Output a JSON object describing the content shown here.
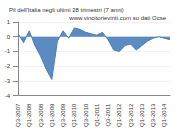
{
  "chart_data": {
    "type": "area",
    "title": "Pil dell'Italia negli ultimi 28 trimestri (7 anni)",
    "subtitle": "www.vincitorievinti.com su dati Ocse",
    "categories": [
      "Q3-2007",
      null,
      "Q1-2008",
      null,
      "Q3-2008",
      null,
      "Q1-2009",
      null,
      "Q3-2009",
      null,
      "Q1-2010",
      null,
      "Q3-2010",
      null,
      "Q1-2011",
      null,
      "Q3-2011",
      null,
      "Q1-2012",
      null,
      "Q3-2012",
      null,
      "Q1-2013",
      null,
      "Q3-2013",
      null,
      "Q1-2014",
      null
    ],
    "values": [
      0.2,
      -0.4,
      0.4,
      -0.6,
      -1.3,
      -2.2,
      -2.9,
      -0.3,
      0.4,
      -0.1,
      0.6,
      0.5,
      0.3,
      0.2,
      0.1,
      0.3,
      -0.2,
      -0.9,
      -1.0,
      -0.6,
      -0.5,
      -0.9,
      -0.6,
      -0.3,
      -0.1,
      0.0,
      -0.1,
      -0.2
    ],
    "color": "#4a7ebb",
    "ylim": [
      -4,
      1
    ],
    "yticks": [
      -4,
      -3,
      -2,
      -1,
      0,
      1
    ],
    "grid": true
  }
}
